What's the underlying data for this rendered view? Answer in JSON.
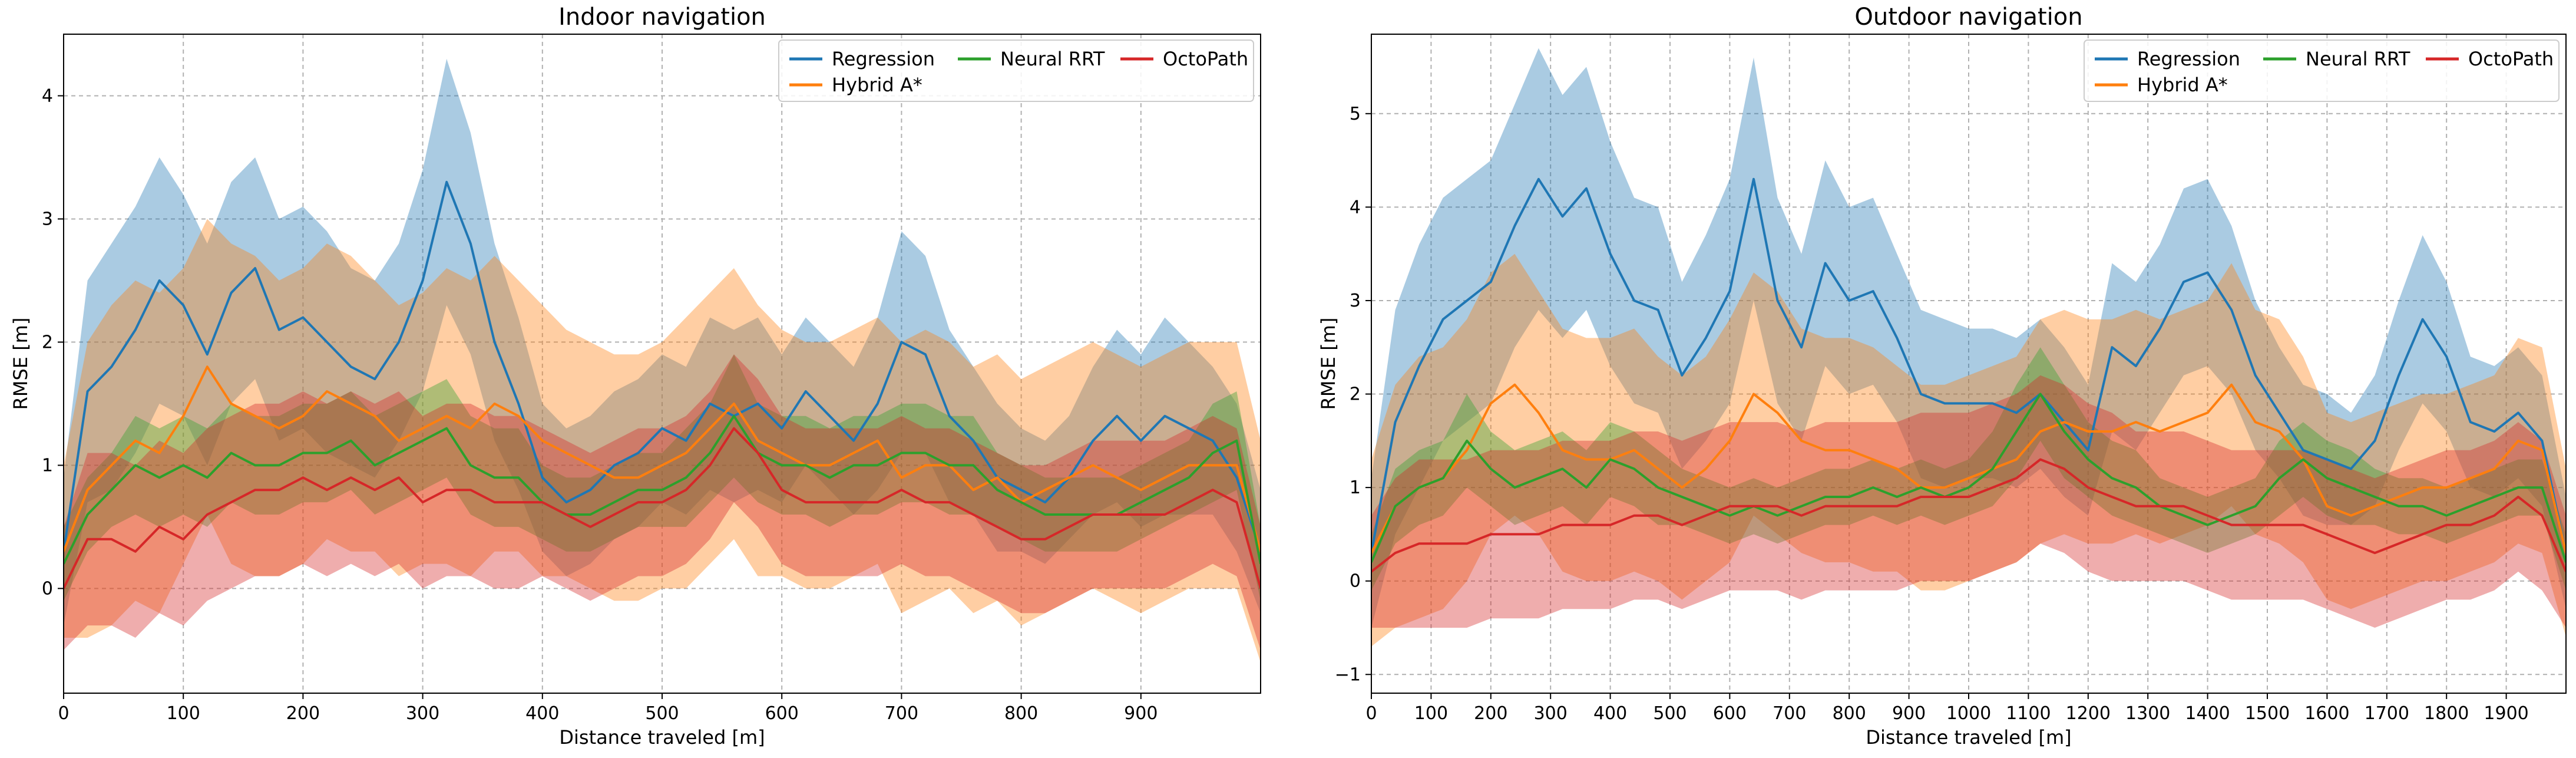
{
  "colors": {
    "Regression": "#1f77b4",
    "Hybrid A*": "#ff7f0e",
    "Neural RRT": "#2ca02c",
    "OctoPath": "#d62728"
  },
  "chart_data": [
    {
      "type": "line",
      "title": "Indoor navigation",
      "xlabel": "Distance traveled [m]",
      "ylabel": "RMSE [m]",
      "xlim": [
        0,
        1000
      ],
      "ylim": [
        -0.85,
        4.5
      ],
      "xticks": [
        0,
        100,
        200,
        300,
        400,
        500,
        600,
        700,
        800,
        900
      ],
      "yticks": [
        0,
        1,
        2,
        3,
        4
      ],
      "grid": true,
      "legend": "top-right",
      "shaded_band": "approximate spread around each series",
      "x": [
        0,
        20,
        40,
        60,
        80,
        100,
        120,
        140,
        160,
        180,
        200,
        220,
        240,
        260,
        280,
        300,
        320,
        340,
        360,
        380,
        400,
        420,
        440,
        460,
        480,
        500,
        520,
        540,
        560,
        580,
        600,
        620,
        640,
        660,
        680,
        700,
        720,
        740,
        760,
        780,
        800,
        820,
        840,
        860,
        880,
        900,
        920,
        940,
        960,
        980,
        1000
      ],
      "series": [
        {
          "name": "Regression",
          "values": [
            0.3,
            1.6,
            1.8,
            2.1,
            2.5,
            2.3,
            1.9,
            2.4,
            2.6,
            2.1,
            2.2,
            2.0,
            1.8,
            1.7,
            2.0,
            2.5,
            3.3,
            2.8,
            2.0,
            1.5,
            0.9,
            0.7,
            0.8,
            1.0,
            1.1,
            1.3,
            1.2,
            1.5,
            1.4,
            1.5,
            1.3,
            1.6,
            1.4,
            1.2,
            1.5,
            2.0,
            1.9,
            1.4,
            1.2,
            0.9,
            0.8,
            0.7,
            0.9,
            1.2,
            1.4,
            1.2,
            1.4,
            1.3,
            1.2,
            0.9,
            0.3
          ],
          "band": [
            0.6,
            0.9,
            1.0,
            1.0,
            1.0,
            0.9,
            0.9,
            0.9,
            0.9,
            0.9,
            0.9,
            0.9,
            0.8,
            0.8,
            0.8,
            0.9,
            1.0,
            0.9,
            0.8,
            0.7,
            0.6,
            0.6,
            0.6,
            0.6,
            0.6,
            0.6,
            0.6,
            0.7,
            0.7,
            0.7,
            0.6,
            0.6,
            0.6,
            0.6,
            0.7,
            0.9,
            0.8,
            0.7,
            0.6,
            0.6,
            0.5,
            0.5,
            0.5,
            0.6,
            0.7,
            0.7,
            0.8,
            0.7,
            0.6,
            0.6,
            0.5
          ]
        },
        {
          "name": "Hybrid A*",
          "values": [
            0.3,
            0.8,
            1.0,
            1.2,
            1.1,
            1.4,
            1.8,
            1.5,
            1.4,
            1.3,
            1.4,
            1.6,
            1.5,
            1.4,
            1.2,
            1.3,
            1.4,
            1.3,
            1.5,
            1.4,
            1.2,
            1.1,
            1.0,
            0.9,
            0.9,
            1.0,
            1.1,
            1.3,
            1.5,
            1.2,
            1.1,
            1.0,
            1.0,
            1.1,
            1.2,
            0.9,
            1.0,
            1.0,
            0.8,
            0.9,
            0.7,
            0.8,
            0.9,
            1.0,
            0.9,
            0.8,
            0.9,
            1.0,
            1.0,
            1.0,
            0.3
          ],
          "band": [
            0.7,
            1.2,
            1.3,
            1.3,
            1.3,
            1.2,
            1.2,
            1.3,
            1.3,
            1.2,
            1.2,
            1.2,
            1.2,
            1.1,
            1.1,
            1.1,
            1.2,
            1.2,
            1.2,
            1.1,
            1.1,
            1.0,
            1.0,
            1.0,
            1.0,
            1.0,
            1.1,
            1.1,
            1.1,
            1.1,
            1.0,
            1.0,
            1.0,
            1.0,
            1.0,
            1.1,
            1.1,
            1.0,
            1.0,
            1.0,
            1.0,
            1.0,
            1.0,
            1.0,
            1.0,
            1.0,
            1.0,
            1.0,
            1.0,
            1.0,
            0.9
          ]
        },
        {
          "name": "Neural RRT",
          "values": [
            0.2,
            0.6,
            0.8,
            1.0,
            0.9,
            1.0,
            0.9,
            1.1,
            1.0,
            1.0,
            1.1,
            1.1,
            1.2,
            1.0,
            1.1,
            1.2,
            1.3,
            1.0,
            0.9,
            0.9,
            0.7,
            0.6,
            0.6,
            0.7,
            0.8,
            0.8,
            0.9,
            1.1,
            1.4,
            1.1,
            1.0,
            1.0,
            0.9,
            1.0,
            1.0,
            1.1,
            1.1,
            1.0,
            1.0,
            0.8,
            0.7,
            0.6,
            0.6,
            0.6,
            0.6,
            0.7,
            0.8,
            0.9,
            1.1,
            1.2,
            0.2
          ],
          "band": [
            0.3,
            0.3,
            0.3,
            0.4,
            0.4,
            0.4,
            0.4,
            0.4,
            0.4,
            0.4,
            0.4,
            0.4,
            0.4,
            0.4,
            0.4,
            0.4,
            0.4,
            0.4,
            0.4,
            0.4,
            0.3,
            0.3,
            0.3,
            0.3,
            0.3,
            0.3,
            0.4,
            0.4,
            0.5,
            0.4,
            0.4,
            0.4,
            0.4,
            0.4,
            0.4,
            0.4,
            0.4,
            0.4,
            0.4,
            0.3,
            0.3,
            0.3,
            0.3,
            0.3,
            0.3,
            0.3,
            0.3,
            0.3,
            0.4,
            0.4,
            0.3
          ]
        },
        {
          "name": "OctoPath",
          "values": [
            0.0,
            0.4,
            0.4,
            0.3,
            0.5,
            0.4,
            0.6,
            0.7,
            0.8,
            0.8,
            0.9,
            0.8,
            0.9,
            0.8,
            0.9,
            0.7,
            0.8,
            0.8,
            0.7,
            0.7,
            0.7,
            0.6,
            0.5,
            0.6,
            0.7,
            0.7,
            0.8,
            1.0,
            1.3,
            1.1,
            0.8,
            0.7,
            0.7,
            0.7,
            0.7,
            0.8,
            0.7,
            0.7,
            0.6,
            0.5,
            0.4,
            0.4,
            0.5,
            0.6,
            0.6,
            0.6,
            0.6,
            0.7,
            0.8,
            0.7,
            0.0
          ],
          "band": [
            0.5,
            0.7,
            0.7,
            0.7,
            0.7,
            0.7,
            0.7,
            0.7,
            0.7,
            0.7,
            0.7,
            0.7,
            0.7,
            0.7,
            0.7,
            0.7,
            0.7,
            0.7,
            0.7,
            0.7,
            0.6,
            0.6,
            0.6,
            0.6,
            0.6,
            0.6,
            0.6,
            0.6,
            0.6,
            0.6,
            0.6,
            0.6,
            0.6,
            0.6,
            0.6,
            0.6,
            0.6,
            0.6,
            0.6,
            0.6,
            0.6,
            0.6,
            0.6,
            0.6,
            0.6,
            0.6,
            0.6,
            0.6,
            0.6,
            0.6,
            0.5
          ]
        }
      ]
    },
    {
      "type": "line",
      "title": "Outdoor navigation",
      "xlabel": "Distance traveled [m]",
      "ylabel": "RMSE [m]",
      "xlim": [
        0,
        2000
      ],
      "ylim": [
        -1.2,
        5.85
      ],
      "xticks": [
        0,
        100,
        200,
        300,
        400,
        500,
        600,
        700,
        800,
        900,
        1000,
        1100,
        1200,
        1300,
        1400,
        1500,
        1600,
        1700,
        1800,
        1900
      ],
      "yticks": [
        -1,
        0,
        1,
        2,
        3,
        4,
        5
      ],
      "grid": true,
      "legend": "top-right",
      "shaded_band": "approximate spread around each series",
      "x": [
        0,
        40,
        80,
        120,
        160,
        200,
        240,
        280,
        320,
        360,
        400,
        440,
        480,
        520,
        560,
        600,
        640,
        680,
        720,
        760,
        800,
        840,
        880,
        920,
        960,
        1000,
        1040,
        1080,
        1120,
        1160,
        1200,
        1240,
        1280,
        1320,
        1360,
        1400,
        1440,
        1480,
        1520,
        1560,
        1600,
        1640,
        1680,
        1720,
        1760,
        1800,
        1840,
        1880,
        1920,
        1960,
        2000
      ],
      "series": [
        {
          "name": "Regression",
          "values": [
            0.3,
            1.7,
            2.3,
            2.8,
            3.0,
            3.2,
            3.8,
            4.3,
            3.9,
            4.2,
            3.5,
            3.0,
            2.9,
            2.2,
            2.6,
            3.1,
            4.3,
            3.0,
            2.5,
            3.4,
            3.0,
            3.1,
            2.6,
            2.0,
            1.9,
            1.9,
            1.9,
            1.8,
            2.0,
            1.7,
            1.4,
            2.5,
            2.3,
            2.7,
            3.2,
            3.3,
            2.9,
            2.2,
            1.8,
            1.4,
            1.3,
            1.2,
            1.5,
            2.2,
            2.8,
            2.4,
            1.7,
            1.6,
            1.8,
            1.5,
            0.3
          ],
          "band": [
            0.8,
            1.2,
            1.3,
            1.3,
            1.3,
            1.3,
            1.3,
            1.4,
            1.3,
            1.3,
            1.2,
            1.1,
            1.1,
            1.0,
            1.1,
            1.2,
            1.3,
            1.1,
            1.0,
            1.1,
            1.0,
            1.0,
            0.9,
            0.9,
            0.9,
            0.8,
            0.8,
            0.8,
            0.8,
            0.8,
            0.7,
            0.9,
            0.9,
            0.9,
            1.0,
            1.0,
            0.9,
            0.8,
            0.7,
            0.7,
            0.7,
            0.6,
            0.7,
            0.8,
            0.9,
            0.8,
            0.7,
            0.7,
            0.7,
            0.7,
            0.6
          ]
        },
        {
          "name": "Hybrid A*",
          "values": [
            0.3,
            0.8,
            1.0,
            1.1,
            1.4,
            1.9,
            2.1,
            1.8,
            1.4,
            1.3,
            1.3,
            1.4,
            1.2,
            1.0,
            1.2,
            1.5,
            2.0,
            1.8,
            1.5,
            1.4,
            1.4,
            1.3,
            1.2,
            1.0,
            1.0,
            1.1,
            1.2,
            1.3,
            1.6,
            1.7,
            1.6,
            1.6,
            1.7,
            1.6,
            1.7,
            1.8,
            2.1,
            1.7,
            1.6,
            1.3,
            0.8,
            0.7,
            0.8,
            0.9,
            1.0,
            1.0,
            1.1,
            1.2,
            1.5,
            1.4,
            0.3
          ],
          "band": [
            1.0,
            1.3,
            1.4,
            1.4,
            1.4,
            1.4,
            1.4,
            1.3,
            1.3,
            1.3,
            1.3,
            1.3,
            1.2,
            1.2,
            1.2,
            1.3,
            1.3,
            1.3,
            1.2,
            1.2,
            1.2,
            1.2,
            1.1,
            1.1,
            1.1,
            1.1,
            1.1,
            1.1,
            1.2,
            1.2,
            1.2,
            1.2,
            1.2,
            1.2,
            1.2,
            1.2,
            1.3,
            1.2,
            1.2,
            1.1,
            1.0,
            1.0,
            1.0,
            1.0,
            1.0,
            1.0,
            1.0,
            1.0,
            1.1,
            1.1,
            0.9
          ]
        },
        {
          "name": "Neural RRT",
          "values": [
            0.2,
            0.8,
            1.0,
            1.1,
            1.5,
            1.2,
            1.0,
            1.1,
            1.2,
            1.0,
            1.3,
            1.2,
            1.0,
            0.9,
            0.8,
            0.7,
            0.8,
            0.7,
            0.8,
            0.9,
            0.9,
            1.0,
            0.9,
            1.0,
            0.9,
            1.0,
            1.2,
            1.6,
            2.0,
            1.6,
            1.3,
            1.1,
            1.0,
            0.8,
            0.7,
            0.6,
            0.7,
            0.8,
            1.1,
            1.3,
            1.1,
            1.0,
            0.9,
            0.8,
            0.8,
            0.7,
            0.8,
            0.9,
            1.0,
            1.0,
            0.2
          ],
          "band": [
            0.3,
            0.4,
            0.4,
            0.4,
            0.5,
            0.4,
            0.4,
            0.4,
            0.4,
            0.4,
            0.4,
            0.4,
            0.4,
            0.3,
            0.3,
            0.3,
            0.3,
            0.3,
            0.3,
            0.3,
            0.3,
            0.3,
            0.3,
            0.3,
            0.3,
            0.3,
            0.4,
            0.5,
            0.5,
            0.5,
            0.4,
            0.4,
            0.4,
            0.3,
            0.3,
            0.3,
            0.3,
            0.3,
            0.4,
            0.4,
            0.4,
            0.4,
            0.3,
            0.3,
            0.3,
            0.3,
            0.3,
            0.3,
            0.3,
            0.3,
            0.3
          ]
        },
        {
          "name": "OctoPath",
          "values": [
            0.1,
            0.3,
            0.4,
            0.4,
            0.4,
            0.5,
            0.5,
            0.5,
            0.6,
            0.6,
            0.6,
            0.7,
            0.7,
            0.6,
            0.7,
            0.8,
            0.8,
            0.8,
            0.7,
            0.8,
            0.8,
            0.8,
            0.8,
            0.9,
            0.9,
            0.9,
            1.0,
            1.1,
            1.3,
            1.2,
            1.0,
            0.9,
            0.8,
            0.8,
            0.8,
            0.7,
            0.6,
            0.6,
            0.6,
            0.6,
            0.5,
            0.4,
            0.3,
            0.4,
            0.5,
            0.6,
            0.6,
            0.7,
            0.9,
            0.7,
            0.1
          ],
          "band": [
            0.6,
            0.8,
            0.9,
            0.9,
            0.9,
            0.9,
            0.9,
            0.9,
            0.9,
            0.9,
            0.9,
            0.9,
            0.9,
            0.9,
            0.9,
            0.9,
            0.9,
            0.9,
            0.9,
            0.9,
            0.9,
            0.9,
            0.9,
            0.9,
            0.9,
            0.9,
            0.9,
            0.9,
            0.9,
            0.9,
            0.9,
            0.9,
            0.8,
            0.8,
            0.8,
            0.8,
            0.8,
            0.8,
            0.8,
            0.8,
            0.8,
            0.8,
            0.8,
            0.8,
            0.8,
            0.8,
            0.8,
            0.8,
            0.8,
            0.8,
            0.6
          ]
        }
      ]
    }
  ]
}
